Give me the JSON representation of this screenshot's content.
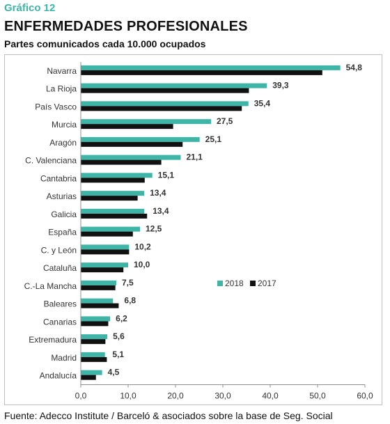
{
  "header": {
    "graf_label": "Gráfico 12",
    "title": "ENFERMEDADES PROFESIONALES",
    "subtitle": "Partes comunicados cada 10.000 ocupados"
  },
  "source": "Fuente: Adecco Institute / Barceló & asociados sobre la base de Seg. Social",
  "colors": {
    "series_2018": "#3fb5a8",
    "series_2017": "#111111",
    "grid_axis": "#8c8c8c",
    "text": "#333333"
  },
  "chart_data": {
    "type": "bar",
    "orientation": "horizontal",
    "categories": [
      "Navarra",
      "La Rioja",
      "País Vasco",
      "Murcia",
      "Aragón",
      "C. Valenciana",
      "Cantabria",
      "Asturias",
      "Galicia",
      "España",
      "C. y León",
      "Cataluña",
      "C.-La Mancha",
      "Baleares",
      "Canarias",
      "Extremadura",
      "Madrid",
      "Andalucía"
    ],
    "series": [
      {
        "name": "2018",
        "values": [
          54.8,
          39.3,
          35.4,
          27.5,
          25.1,
          21.1,
          15.1,
          13.4,
          13.4,
          12.5,
          10.2,
          10.0,
          7.5,
          6.8,
          6.2,
          5.6,
          5.1,
          4.5
        ]
      },
      {
        "name": "2017",
        "values": [
          51.0,
          35.5,
          34.0,
          19.5,
          21.5,
          17.0,
          13.5,
          12.0,
          14.0,
          11.0,
          10.2,
          9.0,
          7.3,
          8.0,
          5.8,
          5.2,
          5.5,
          3.2
        ]
      }
    ],
    "data_labels": [
      "54,8",
      "39,3",
      "35,4",
      "27,5",
      "25,1",
      "21,1",
      "15,1",
      "13,4",
      "13,4",
      "12,5",
      "10,2",
      "10,0",
      "7,5",
      "6,8",
      "6,2",
      "5,6",
      "5,1",
      "4,5"
    ],
    "x_ticks": [
      "0,0",
      "10,0",
      "20,0",
      "30,0",
      "40,0",
      "50,0",
      "60,0"
    ],
    "xlim": [
      0,
      60
    ],
    "grid": false,
    "legend_position": "right-middle"
  }
}
